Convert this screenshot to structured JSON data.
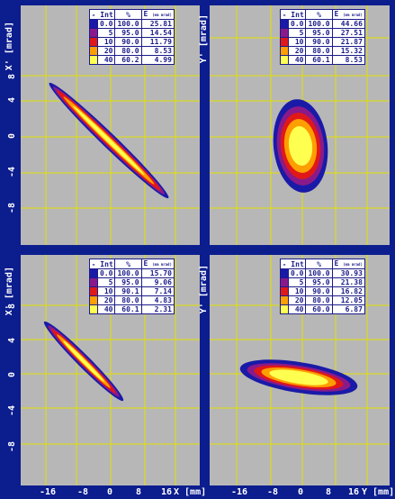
{
  "colors": {
    "background": "#b7b7b7",
    "frame": "#0c1d8e",
    "grid": "#e2e200",
    "levels": [
      "#1a1aa8",
      "#8a1a8a",
      "#e01818",
      "#ff9e00",
      "#ffff50"
    ]
  },
  "chart_data": [
    {
      "type": "heatmap",
      "panel": "top-left",
      "ylabel": "X' [mrad]",
      "xlabel": "",
      "yticks": [
        "8",
        "4",
        "0",
        "-4",
        "-8"
      ],
      "xticks": [],
      "legend": {
        "headers": [
          "- Int",
          "%",
          "E"
        ],
        "unit": "(mm mrad)",
        "rows": [
          [
            "0.0",
            "100.0",
            "25.81"
          ],
          [
            "5",
            "95.0",
            "14.54"
          ],
          [
            "10",
            "90.0",
            "11.79"
          ],
          [
            "20",
            "80.0",
            "8.53"
          ],
          [
            "40",
            "60.2",
            "4.99"
          ]
        ]
      }
    },
    {
      "type": "heatmap",
      "panel": "top-right",
      "ylabel": "Y' [mrad]",
      "xlabel": "",
      "yticks": [],
      "xticks": [],
      "legend": {
        "headers": [
          "- Int",
          "%",
          "E"
        ],
        "unit": "(mm mrad)",
        "rows": [
          [
            "0.0",
            "100.0",
            "44.66"
          ],
          [
            "5",
            "95.0",
            "27.51"
          ],
          [
            "10",
            "90.0",
            "21.87"
          ],
          [
            "20",
            "80.0",
            "15.32"
          ],
          [
            "40",
            "60.1",
            "8.53"
          ]
        ]
      }
    },
    {
      "type": "heatmap",
      "panel": "bottom-left",
      "ylabel": "X' [mrad]",
      "xlabel": "X [mm]",
      "yticks": [
        "8",
        "4",
        "0",
        "-4",
        "-8"
      ],
      "xticks": [
        "-16",
        "-8",
        "0",
        "8",
        "16"
      ],
      "legend": {
        "headers": [
          "- Int",
          "%",
          "E"
        ],
        "unit": "(mm mrad)",
        "rows": [
          [
            "0.0",
            "100.0",
            "15.70"
          ],
          [
            "5",
            "95.0",
            "9.06"
          ],
          [
            "10",
            "90.1",
            "7.14"
          ],
          [
            "20",
            "80.0",
            "4.83"
          ],
          [
            "40",
            "60.1",
            "2.31"
          ]
        ]
      }
    },
    {
      "type": "heatmap",
      "panel": "bottom-right",
      "ylabel": "Y' [mrad]",
      "xlabel": "Y [mm]",
      "yticks": [],
      "xticks": [
        "-16",
        "-8",
        "0",
        "8",
        "16"
      ],
      "legend": {
        "headers": [
          "- Int",
          "%",
          "E"
        ],
        "unit": "(mm mrad)",
        "rows": [
          [
            "0.0",
            "100.0",
            "30.93"
          ],
          [
            "5",
            "95.0",
            "21.38"
          ],
          [
            "10",
            "90.0",
            "16.82"
          ],
          [
            "20",
            "80.0",
            "12.05"
          ],
          [
            "40",
            "60.0",
            "6.87"
          ]
        ]
      }
    }
  ]
}
